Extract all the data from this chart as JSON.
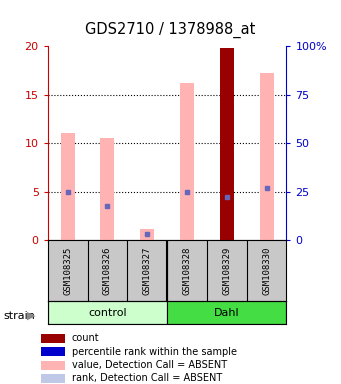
{
  "title": "GDS2710 / 1378988_at",
  "samples": [
    "GSM108325",
    "GSM108326",
    "GSM108327",
    "GSM108328",
    "GSM108329",
    "GSM108330"
  ],
  "group_colors": [
    "#ccffcc",
    "#44dd44"
  ],
  "group_labels": [
    "control",
    "Dahl"
  ],
  "group_splits": [
    3,
    3
  ],
  "pink_bar_values": [
    11.0,
    10.5,
    1.1,
    16.2,
    19.8,
    17.2
  ],
  "blue_dot_values": [
    5.0,
    3.5,
    0.6,
    4.9,
    4.4,
    5.4
  ],
  "red_bar_index": 4,
  "ylim_left": [
    0,
    20
  ],
  "ylim_right": [
    0,
    100
  ],
  "yticks_left": [
    0,
    5,
    10,
    15,
    20
  ],
  "yticks_right": [
    0,
    25,
    50,
    75,
    100
  ],
  "ytick_labels_left": [
    "0",
    "5",
    "10",
    "15",
    "20"
  ],
  "ytick_labels_right": [
    "0",
    "25",
    "50",
    "75",
    "100%"
  ],
  "left_axis_color": "#cc0000",
  "right_axis_color": "#0000cc",
  "pink_color": "#ffb3b3",
  "blue_dot_color": "#6666bb",
  "red_bar_color": "#990000",
  "gray_box_color": "#c8c8c8",
  "bar_width": 0.35,
  "legend_items": [
    {
      "color": "#990000",
      "label": "count"
    },
    {
      "color": "#0000cc",
      "label": "percentile rank within the sample"
    },
    {
      "color": "#ffb3b3",
      "label": "value, Detection Call = ABSENT"
    },
    {
      "color": "#c0c8e8",
      "label": "rank, Detection Call = ABSENT"
    }
  ]
}
